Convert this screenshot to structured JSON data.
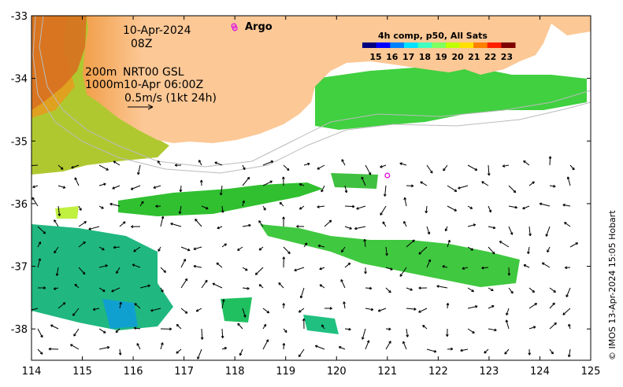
{
  "annotations": {
    "date": "10-Apr-2024",
    "hour": "08Z",
    "contour_200": "200m",
    "contour_1000": "1000m",
    "current_source": "NRT00 GSL",
    "current_time": "10-Apr 06:00Z",
    "vector_scale": "0.5m/s (1kt 24h)",
    "argo": "Argo",
    "credit": "© IMOS 13-Apr-2024 15:05 Hobart"
  },
  "colorbar": {
    "title": "4h comp, p50, All Sats",
    "ticks": [
      "15",
      "16",
      "17",
      "18",
      "19",
      "20",
      "21",
      "22",
      "23"
    ],
    "colors": [
      "#00007f",
      "#0000ff",
      "#0080ff",
      "#00e0ff",
      "#40ffc0",
      "#80ff60",
      "#c0ff00",
      "#ffe000",
      "#ff8000",
      "#ff2000",
      "#7f0000"
    ]
  },
  "map": {
    "lon_range": [
      114,
      125
    ],
    "lat_range": [
      -38.5,
      -33
    ],
    "lon_ticks": [
      "114",
      "115",
      "116",
      "117",
      "118",
      "119",
      "120",
      "121",
      "122",
      "123",
      "124",
      "125"
    ],
    "lat_ticks": [
      "-33",
      "-34",
      "-35",
      "-36",
      "-37",
      "-38"
    ],
    "land_color": "#fcc896",
    "argo_floats": [
      {
        "lon": 118.0,
        "lat": -33.2
      },
      {
        "lon": 121.0,
        "lat": -35.55
      }
    ]
  }
}
